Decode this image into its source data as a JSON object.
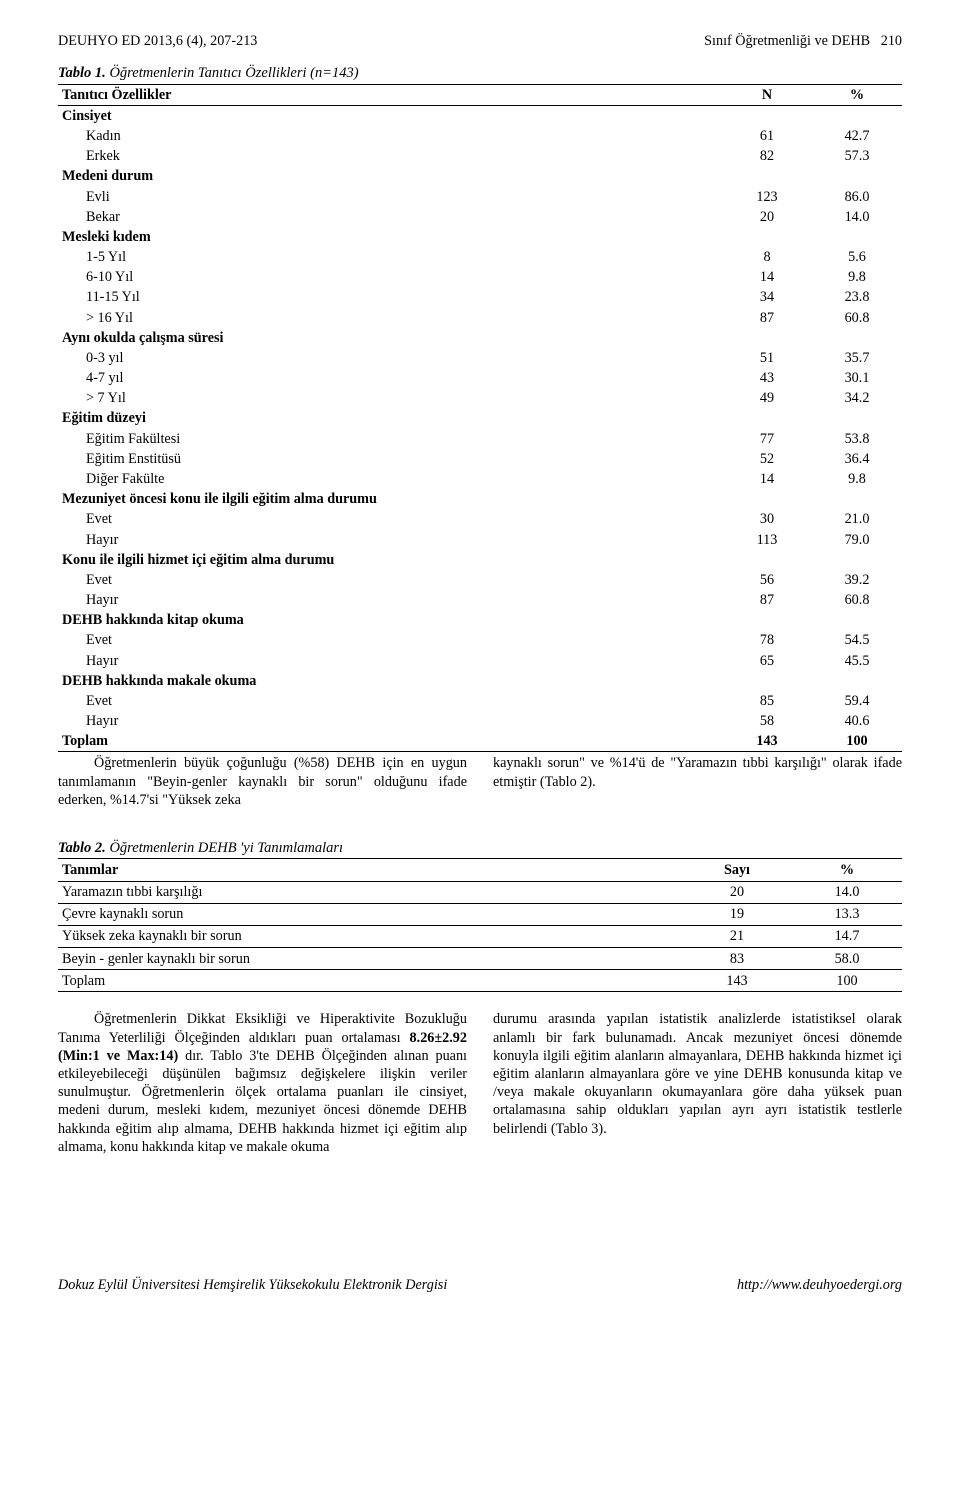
{
  "header": {
    "left": "DEUHYO ED 2013,6 (4), 207-213",
    "right_topic": "Sınıf Öğretmenliği ve DEHB",
    "right_page": "210"
  },
  "table1": {
    "caption_prefix": "Tablo 1.",
    "caption_rest": " Öğretmenlerin Tanıtıcı Özellikleri (n=143)",
    "col_headers": [
      "Tanıtıcı Özellikler",
      "N",
      "%"
    ],
    "sections": [
      {
        "label": "Cinsiyet",
        "rows": [
          {
            "label": "Kadın",
            "n": "61",
            "pct": "42.7"
          },
          {
            "label": "Erkek",
            "n": "82",
            "pct": "57.3"
          }
        ]
      },
      {
        "label": "Medeni durum",
        "rows": [
          {
            "label": "Evli",
            "n": "123",
            "pct": "86.0"
          },
          {
            "label": "Bekar",
            "n": "20",
            "pct": "14.0"
          }
        ]
      },
      {
        "label": "Mesleki kıdem",
        "rows": [
          {
            "label": "1-5 Yıl",
            "n": "8",
            "pct": "5.6"
          },
          {
            "label": "6-10 Yıl",
            "n": "14",
            "pct": "9.8"
          },
          {
            "label": "11-15 Yıl",
            "n": "34",
            "pct": "23.8"
          },
          {
            "label": "> 16 Yıl",
            "n": "87",
            "pct": "60.8"
          }
        ]
      },
      {
        "label": "Aynı okulda çalışma süresi",
        "rows": [
          {
            "label": "0-3 yıl",
            "n": "51",
            "pct": "35.7"
          },
          {
            "label": "4-7 yıl",
            "n": "43",
            "pct": "30.1"
          },
          {
            "label": "> 7 Yıl",
            "n": "49",
            "pct": "34.2"
          }
        ]
      },
      {
        "label": "Eğitim düzeyi",
        "rows": [
          {
            "label": "Eğitim Fakültesi",
            "n": "77",
            "pct": "53.8"
          },
          {
            "label": "Eğitim Enstitüsü",
            "n": "52",
            "pct": "36.4"
          },
          {
            "label": "Diğer Fakülte",
            "n": "14",
            "pct": "9.8"
          }
        ]
      },
      {
        "label": "Mezuniyet öncesi konu ile ilgili eğitim alma durumu",
        "rows": [
          {
            "label": "Evet",
            "n": "30",
            "pct": "21.0"
          },
          {
            "label": "Hayır",
            "n": "113",
            "pct": "79.0"
          }
        ]
      },
      {
        "label": "Konu ile ilgili hizmet içi eğitim alma durumu",
        "rows": [
          {
            "label": "Evet",
            "n": "56",
            "pct": "39.2"
          },
          {
            "label": "Hayır",
            "n": "87",
            "pct": "60.8"
          }
        ]
      },
      {
        "label": "DEHB hakkında kitap okuma",
        "rows": [
          {
            "label": "Evet",
            "n": "78",
            "pct": "54.5"
          },
          {
            "label": "Hayır",
            "n": "65",
            "pct": "45.5"
          }
        ]
      },
      {
        "label": "DEHB hakkında makale okuma",
        "rows": [
          {
            "label": "Evet",
            "n": "85",
            "pct": "59.4"
          },
          {
            "label": "Hayır",
            "n": "58",
            "pct": "40.6"
          }
        ]
      }
    ],
    "total": {
      "label": "Toplam",
      "n": "143",
      "pct": "100"
    }
  },
  "mid_para": {
    "left": "Öğretmenlerin büyük çoğunluğu (%58) DEHB için en uygun tanımlamanın \"Beyin-genler kaynaklı bir sorun\" olduğunu ifade ederken, %14.7'si \"Yüksek zeka",
    "right": "kaynaklı sorun\" ve %14'ü de \"Yaramazın tıbbi karşılığı\" olarak ifade etmiştir (Tablo 2)."
  },
  "table2": {
    "caption_prefix": "Tablo 2.",
    "caption_rest": " Öğretmenlerin DEHB 'yi Tanımlamaları",
    "col_headers": [
      "Tanımlar",
      "Sayı",
      "%"
    ],
    "rows": [
      {
        "label": "Yaramazın tıbbi karşılığı",
        "n": "20",
        "pct": "14.0"
      },
      {
        "label": "Çevre kaynaklı sorun",
        "n": "19",
        "pct": "13.3"
      },
      {
        "label": "Yüksek zeka kaynaklı bir sorun",
        "n": "21",
        "pct": "14.7"
      },
      {
        "label": "Beyin - genler kaynaklı bir sorun",
        "n": "83",
        "pct": "58.0"
      }
    ],
    "total": {
      "label": "Toplam",
      "n": "143",
      "pct": "100"
    }
  },
  "body_para": {
    "left_segments": [
      "Öğretmenlerin Dikkat Eksikliği ve Hiperaktivite Bozukluğu Tanıma Yeterliliği Ölçeğinden aldıkları puan ortalaması ",
      "8.26±2.92 (Min:1 ve Max:14)",
      " dır. Tablo 3'te DEHB Ölçeğinden alınan puanı etkileyebileceği düşünülen bağımsız değişkelere ilişkin veriler sunulmuştur. Öğretmenlerin ölçek ortalama puanları ile cinsiyet, medeni durum, mesleki kıdem, mezuniyet öncesi dönemde DEHB hakkında eğitim alıp almama, DEHB hakkında hizmet içi eğitim alıp almama, konu hakkında kitap ve makale okuma"
    ],
    "right": "durumu arasında yapılan istatistik analizlerde istatistiksel olarak anlamlı bir fark bulunamadı. Ancak mezuniyet öncesi dönemde konuyla ilgili eğitim alanların almayanlara, DEHB hakkında hizmet içi eğitim alanların almayanlara göre ve yine DEHB konusunda kitap ve /veya makale okuyanların okumayanlara göre daha yüksek puan ortalamasına sahip oldukları yapılan ayrı ayrı istatistik testlerle belirlendi (Tablo 3)."
  },
  "footer": {
    "left": "Dokuz Eylül Üniversitesi Hemşirelik Yüksekokulu Elektronik Dergisi",
    "right": "http://www.deuhyoedergi.org"
  },
  "colors": {
    "text": "#000000",
    "background": "#ffffff",
    "rule": "#000000"
  }
}
